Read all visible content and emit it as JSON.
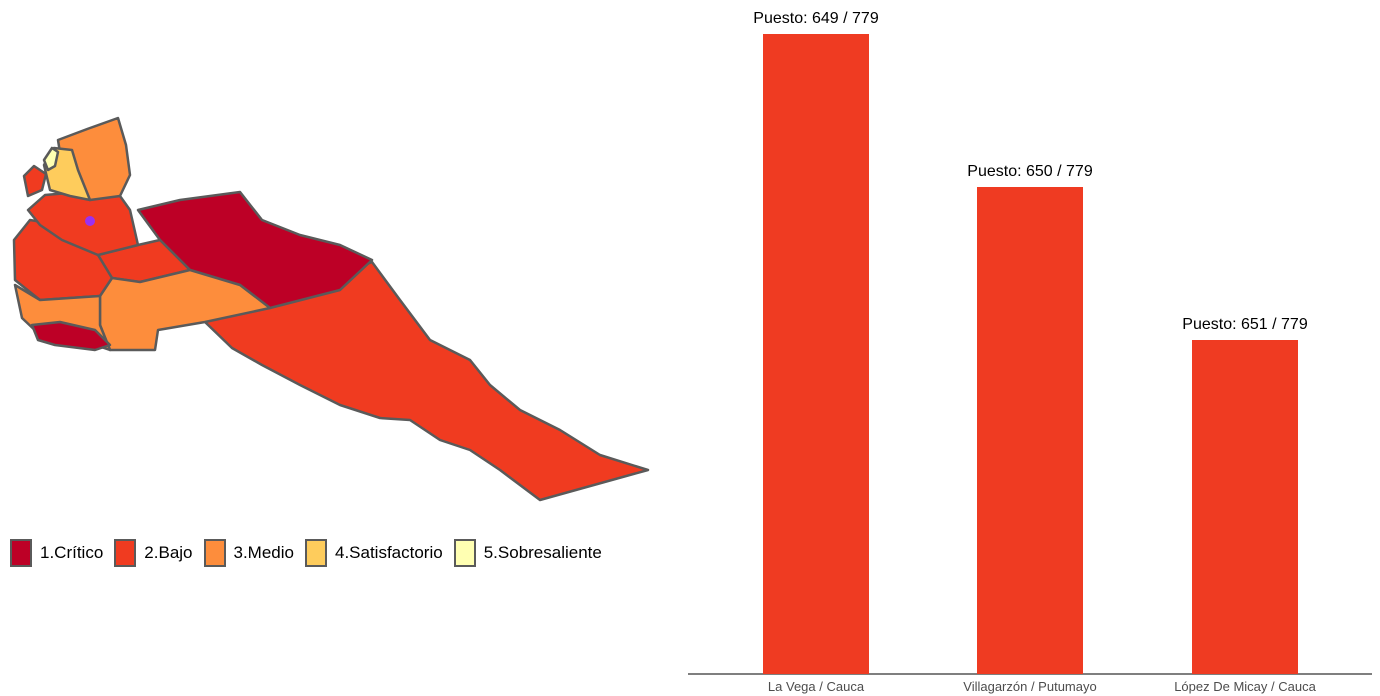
{
  "map": {
    "regions": [
      {
        "name": "region-north-medio",
        "category": "3.Medio"
      },
      {
        "name": "region-north-satisfactorio",
        "category": "4.Satisfactorio"
      },
      {
        "name": "region-north-sobresaliente",
        "category": "5.Sobresaliente"
      },
      {
        "name": "region-northwest-bajo",
        "category": "2.Bajo"
      },
      {
        "name": "region-central-bajo",
        "category": "2.Bajo"
      },
      {
        "name": "region-west-bajo",
        "category": "2.Bajo"
      },
      {
        "name": "region-central-east-bajo",
        "category": "2.Bajo"
      },
      {
        "name": "region-critico-large",
        "category": "1.Crítico"
      },
      {
        "name": "region-south-medio",
        "category": "3.Medio"
      },
      {
        "name": "region-southwest-medio",
        "category": "3.Medio"
      },
      {
        "name": "region-southwest-critico",
        "category": "1.Crítico"
      },
      {
        "name": "region-tail-bajo",
        "category": "2.Bajo"
      }
    ],
    "marker_color": "#9b30f0",
    "border_color": "#5a5a5a"
  },
  "legend": [
    {
      "label": "1.Crítico",
      "color": "#bd0026"
    },
    {
      "label": "2.Bajo",
      "color": "#f03b20"
    },
    {
      "label": "3.Medio",
      "color": "#fd8d3c"
    },
    {
      "label": "4.Satisfactorio",
      "color": "#fecc5c"
    },
    {
      "label": "5.Sobresaliente",
      "color": "#ffffb2"
    }
  ],
  "chart_data": {
    "type": "bar",
    "categories": [
      "La Vega / Cauca",
      "Villagarzón / Putumayo",
      "López De Micay / Cauca"
    ],
    "values": [
      649,
      650,
      651
    ],
    "total": 779,
    "bar_labels": [
      "Puesto: 649 / 779",
      "Puesto: 650 / 779",
      "Puesto: 651 / 779"
    ],
    "bar_color": "#ef3b22",
    "title": "",
    "xlabel": "",
    "ylabel": "",
    "grid": false,
    "legend": "none"
  }
}
